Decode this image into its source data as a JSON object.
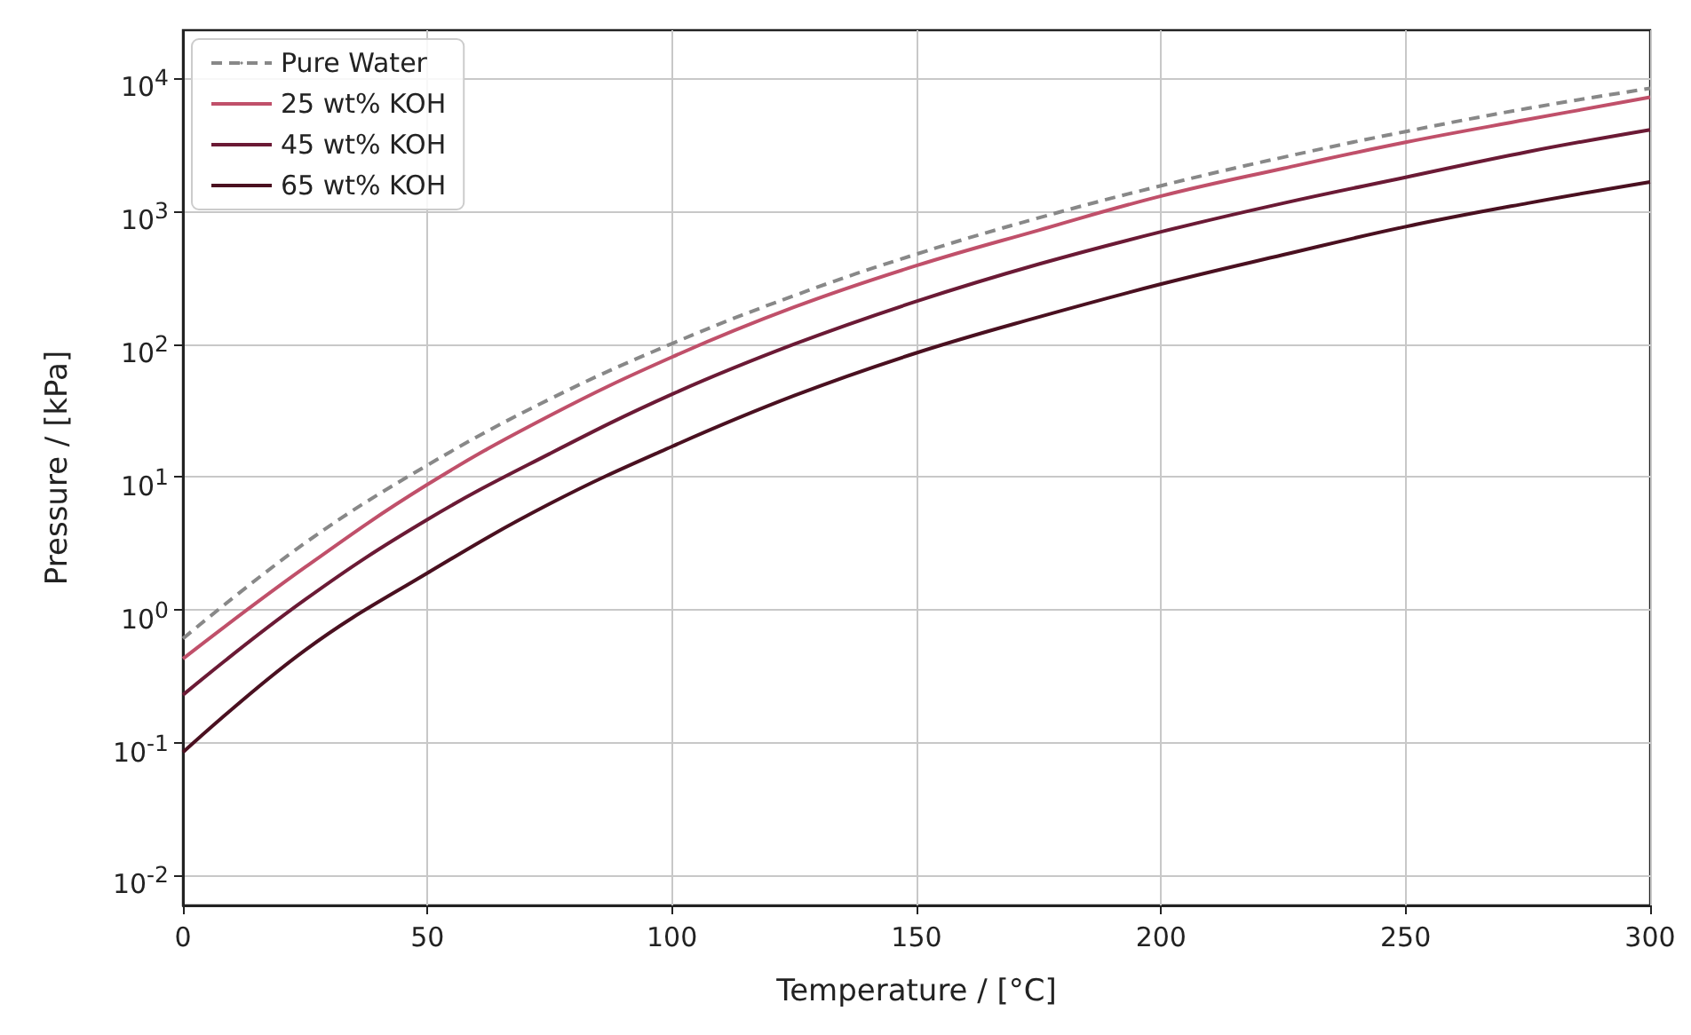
{
  "chart_data": {
    "type": "line",
    "xlabel": "Temperature / [°C]",
    "ylabel": "Pressure / [kPa]",
    "x": [
      0,
      25,
      50,
      75,
      100,
      125,
      150,
      175,
      200,
      225,
      250,
      275,
      300
    ],
    "series": [
      {
        "name": "Pure Water",
        "color": "#888888",
        "line_style": "dashed",
        "values": [
          0.61,
          3.2,
          12.3,
          38.6,
          101,
          232,
          476,
          892,
          1555,
          2548,
          3976,
          5940,
          8400
        ]
      },
      {
        "name": "25 wt% KOH",
        "color": "#c0506a",
        "values": [
          0.43,
          2.1,
          8.8,
          29,
          80,
          190,
          390,
          720,
          1300,
          2100,
          3300,
          4900,
          7200
        ]
      },
      {
        "name": "45 wt% KOH",
        "color": "#6b1a35",
        "values": [
          0.23,
          1.2,
          4.8,
          15,
          42,
          100,
          210,
          400,
          700,
          1150,
          1800,
          2800,
          4100
        ]
      },
      {
        "name": "65 wt% KOH",
        "color": "#4a1020",
        "values": [
          0.085,
          0.5,
          1.9,
          6.3,
          17,
          41,
          86,
          160,
          283,
          470,
          765,
          1150,
          1660
        ]
      }
    ],
    "xlim": [
      0,
      300
    ],
    "xticks": [
      0,
      50,
      100,
      150,
      200,
      250,
      300
    ],
    "ylim": [
      0.006,
      23000
    ],
    "log": "y",
    "yticks": [
      {
        "value": 0.01,
        "label": "10$^{-2}$"
      },
      {
        "value": 0.1,
        "label": "10$^{-1}$"
      },
      {
        "value": 1,
        "label": "10$^{0}$"
      },
      {
        "value": 10,
        "label": "10$^{1}$"
      },
      {
        "value": 100,
        "label": "10$^{2}$"
      },
      {
        "value": 1000,
        "label": "10$^{3}$"
      },
      {
        "value": 10000,
        "label": "10$^{4}$"
      }
    ],
    "grid": true,
    "legend": "top left"
  }
}
